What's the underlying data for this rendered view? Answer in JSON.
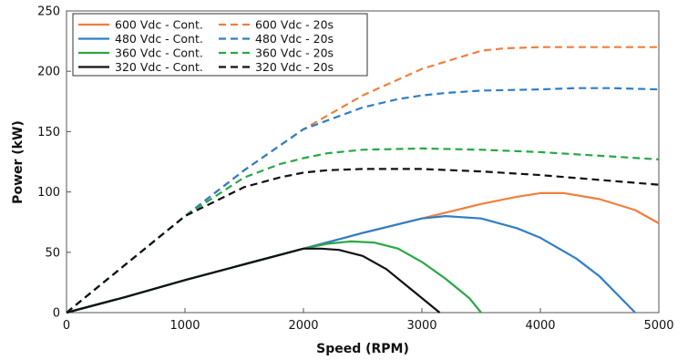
{
  "chart_data": {
    "type": "line",
    "title": "",
    "xlabel": "Speed (RPM)",
    "ylabel": "Power (kW)",
    "xlim": [
      0,
      5000
    ],
    "ylim": [
      0,
      250
    ],
    "xticks": [
      0,
      1000,
      2000,
      3000,
      4000,
      5000
    ],
    "yticks": [
      0,
      50,
      100,
      150,
      200,
      250
    ],
    "grid": false,
    "legend": "top-left",
    "series": [
      {
        "name": "600 Vdc - Cont.",
        "color": "#f07f3c",
        "dash": "solid",
        "x": [
          0,
          500,
          1000,
          1500,
          2000,
          2500,
          3000,
          3500,
          3800,
          4000,
          4200,
          4500,
          4800,
          5000
        ],
        "y": [
          0,
          13,
          27,
          40,
          53,
          66,
          78,
          90,
          96,
          99,
          99,
          94,
          85,
          74
        ]
      },
      {
        "name": "480 Vdc - Cont.",
        "color": "#2f7ec8",
        "dash": "solid",
        "x": [
          0,
          500,
          1000,
          1500,
          2000,
          2500,
          3000,
          3200,
          3500,
          3800,
          4000,
          4300,
          4500,
          4650,
          4800
        ],
        "y": [
          0,
          13,
          27,
          40,
          53,
          66,
          78,
          80,
          78,
          70,
          62,
          45,
          30,
          15,
          0
        ]
      },
      {
        "name": "360 Vdc - Cont.",
        "color": "#27a844",
        "dash": "solid",
        "x": [
          0,
          500,
          1000,
          1500,
          2000,
          2200,
          2400,
          2600,
          2800,
          3000,
          3200,
          3400,
          3500
        ],
        "y": [
          0,
          13,
          27,
          40,
          53,
          57,
          59,
          58,
          53,
          42,
          28,
          12,
          0
        ]
      },
      {
        "name": "320 Vdc - Cont.",
        "color": "#111111",
        "dash": "solid",
        "x": [
          0,
          500,
          1000,
          1500,
          2000,
          2150,
          2300,
          2500,
          2700,
          2900,
          3050,
          3150
        ],
        "y": [
          0,
          13,
          27,
          40,
          53,
          53,
          52,
          47,
          36,
          20,
          8,
          0
        ]
      },
      {
        "name": "600 Vdc - 20s",
        "color": "#f07f3c",
        "dash": "dashed",
        "x": [
          0,
          500,
          1000,
          1500,
          2000,
          2500,
          3000,
          3500,
          3700,
          4000,
          4500,
          5000
        ],
        "y": [
          0,
          40,
          80,
          118,
          152,
          180,
          202,
          217,
          219,
          220,
          220,
          220
        ]
      },
      {
        "name": "480 Vdc - 20s",
        "color": "#2f7ec8",
        "dash": "dashed",
        "x": [
          0,
          500,
          1000,
          1500,
          2000,
          2500,
          2800,
          3000,
          3200,
          3500,
          4000,
          4300,
          4600,
          5000
        ],
        "y": [
          0,
          40,
          80,
          118,
          152,
          170,
          177,
          180,
          182,
          184,
          185,
          186,
          186,
          185
        ]
      },
      {
        "name": "360 Vdc - 20s",
        "color": "#27a844",
        "dash": "dashed",
        "x": [
          0,
          500,
          1000,
          1500,
          1800,
          2000,
          2200,
          2500,
          3000,
          3500,
          4000,
          4500,
          5000
        ],
        "y": [
          0,
          40,
          80,
          112,
          123,
          128,
          132,
          135,
          136,
          135,
          133,
          130,
          127
        ]
      },
      {
        "name": "320 Vdc - 20s",
        "color": "#111111",
        "dash": "dashed",
        "x": [
          0,
          500,
          1000,
          1500,
          1800,
          2000,
          2200,
          2500,
          3000,
          3500,
          4000,
          4500,
          5000
        ],
        "y": [
          0,
          40,
          80,
          104,
          112,
          116,
          118,
          119,
          119,
          117,
          114,
          110,
          106
        ]
      }
    ]
  }
}
